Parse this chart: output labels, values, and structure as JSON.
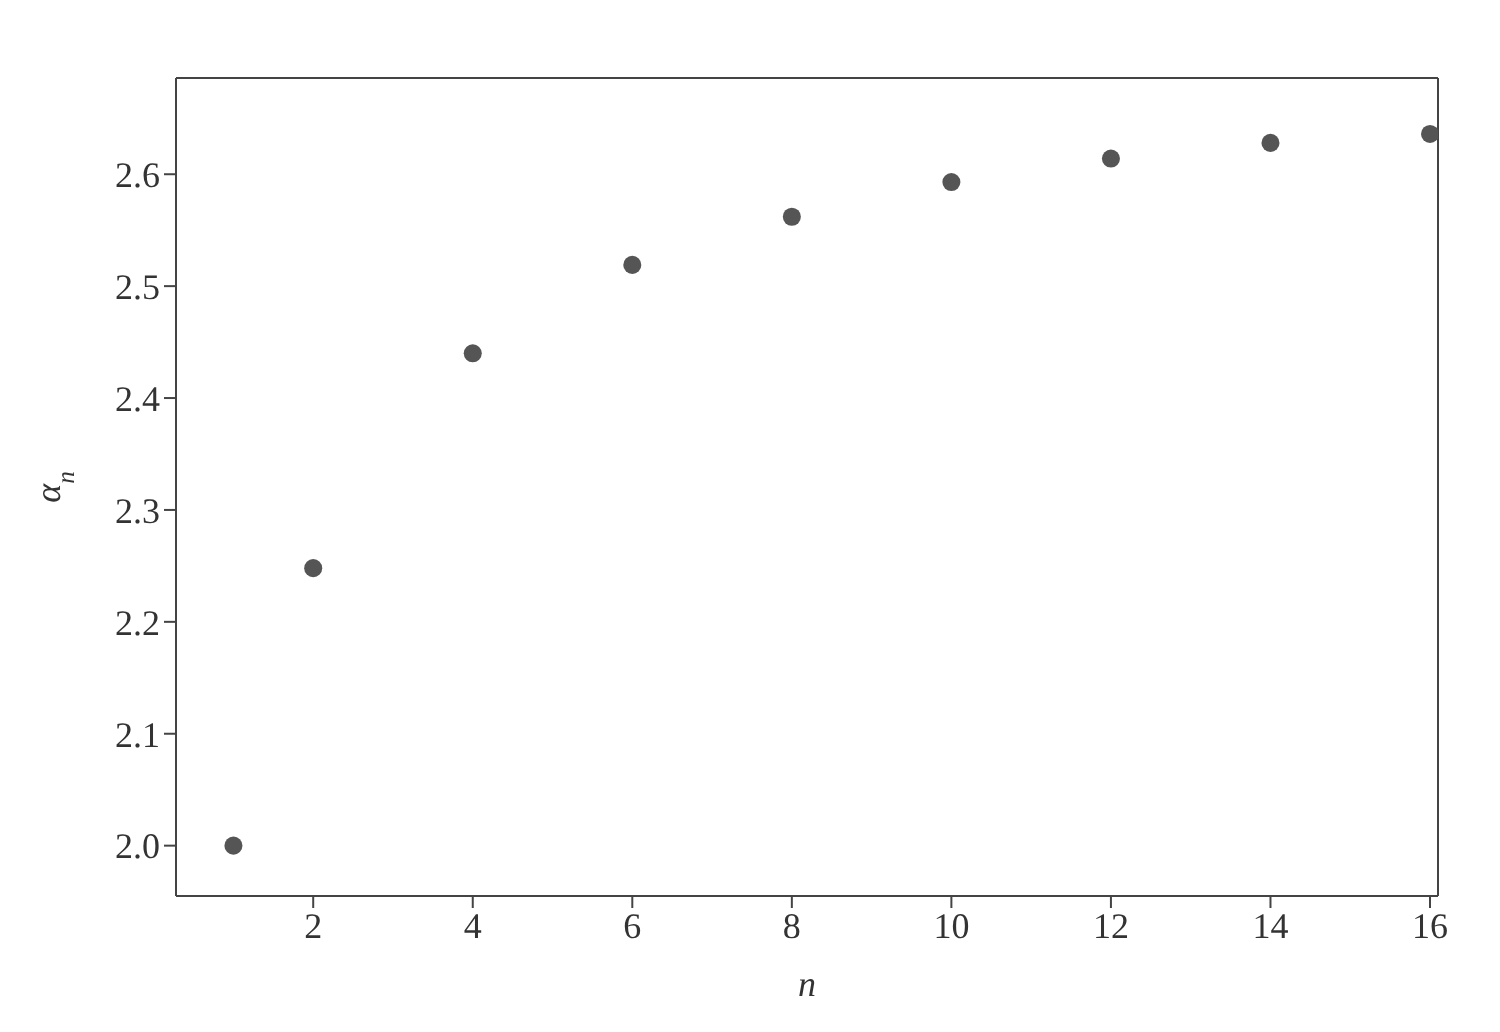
{
  "chart_data": {
    "type": "scatter",
    "xlabel": "n",
    "ylabel": "α$_{n}$",
    "x": [
      1,
      2,
      4,
      6,
      8,
      10,
      12,
      14,
      16
    ],
    "series": [
      {
        "color": "#555555",
        "values": [
          2.0,
          2.248,
          2.44,
          2.519,
          2.562,
          2.593,
          2.614,
          2.628,
          2.636
        ]
      }
    ],
    "xlim": [
      0.28,
      16.1
    ],
    "xticks": [
      2,
      4,
      6,
      8,
      10,
      12,
      14,
      16
    ],
    "ylim": [
      1.955,
      2.686
    ],
    "yticks": [
      {
        "value": 2,
        "label": "2.0"
      },
      2.1,
      2.2,
      2.3,
      2.4,
      2.5,
      2.6
    ],
    "marker": "circle"
  }
}
